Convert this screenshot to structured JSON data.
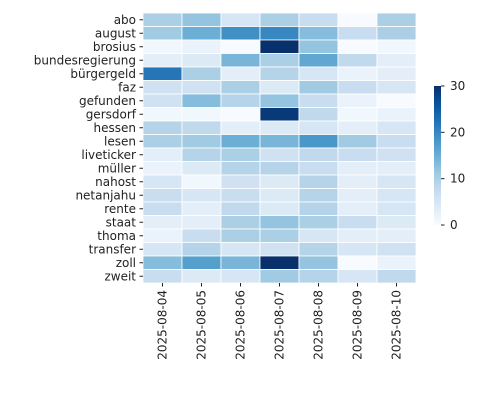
{
  "chart_data": {
    "type": "heatmap",
    "title": "",
    "xlabel": "",
    "ylabel": "",
    "x": [
      "2025-08-04",
      "2025-08-05",
      "2025-08-06",
      "2025-08-07",
      "2025-08-08",
      "2025-08-09",
      "2025-08-10"
    ],
    "y": [
      "abo",
      "august",
      "brosius",
      "bundesregierung",
      "bürgergeld",
      "faz",
      "gefunden",
      "gersdorf",
      "hessen",
      "lesen",
      "liveticker",
      "müller",
      "nahost",
      "netanjahu",
      "rente",
      "staat",
      "thoma",
      "transfer",
      "zoll",
      "zweit"
    ],
    "values": [
      [
        10,
        12,
        5,
        10,
        7,
        0,
        10
      ],
      [
        11,
        15,
        19,
        20,
        13,
        7,
        10
      ],
      [
        1,
        2,
        0,
        32,
        12,
        0,
        1
      ],
      [
        3,
        4,
        14,
        10,
        16,
        8,
        3
      ],
      [
        22,
        10,
        3,
        9,
        5,
        2,
        3
      ],
      [
        6,
        6,
        10,
        4,
        11,
        7,
        5
      ],
      [
        6,
        13,
        9,
        12,
        7,
        2,
        0
      ],
      [
        1,
        1,
        0,
        29,
        8,
        1,
        2
      ],
      [
        9,
        8,
        3,
        4,
        5,
        3,
        5
      ],
      [
        10,
        11,
        15,
        14,
        18,
        11,
        7
      ],
      [
        3,
        9,
        10,
        6,
        8,
        7,
        6
      ],
      [
        2,
        4,
        9,
        9,
        7,
        3,
        3
      ],
      [
        5,
        1,
        6,
        4,
        9,
        3,
        5
      ],
      [
        7,
        5,
        7,
        4,
        9,
        3,
        5
      ],
      [
        7,
        3,
        8,
        4,
        9,
        3,
        5
      ],
      [
        3,
        3,
        10,
        12,
        10,
        7,
        4
      ],
      [
        2,
        7,
        10,
        10,
        5,
        3,
        3
      ],
      [
        5,
        9,
        5,
        6,
        9,
        5,
        6
      ],
      [
        13,
        17,
        14,
        31,
        12,
        0,
        2
      ],
      [
        7,
        4,
        5,
        11,
        9,
        5,
        8
      ]
    ],
    "colorbar": {
      "min": 0,
      "max": 30,
      "ticks": [
        0,
        10,
        20,
        30
      ]
    },
    "colormap": "Blues",
    "cell_border_color": "#ffffff",
    "grid": false,
    "legend": "colorbar-right"
  }
}
